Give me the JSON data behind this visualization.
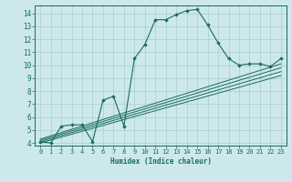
{
  "title": "",
  "xlabel": "Humidex (Indice chaleur)",
  "bg_color": "#cce8ec",
  "grid_color": "#aacccc",
  "line_color": "#1a6b5a",
  "xlim": [
    -0.5,
    23.5
  ],
  "ylim": [
    3.8,
    14.6
  ],
  "xticks": [
    0,
    1,
    2,
    3,
    4,
    5,
    6,
    7,
    8,
    9,
    10,
    11,
    12,
    13,
    14,
    15,
    16,
    17,
    18,
    19,
    20,
    21,
    22,
    23
  ],
  "yticks": [
    4,
    5,
    6,
    7,
    8,
    9,
    10,
    11,
    12,
    13,
    14
  ],
  "main_x": [
    0,
    1,
    2,
    3,
    4,
    5,
    6,
    7,
    8,
    9,
    10,
    11,
    12,
    13,
    14,
    15,
    16,
    17,
    18,
    19,
    20,
    21,
    22,
    23
  ],
  "main_y": [
    4.1,
    4.0,
    5.3,
    5.4,
    5.4,
    4.1,
    7.3,
    7.6,
    5.3,
    10.5,
    11.6,
    13.5,
    13.5,
    13.9,
    14.2,
    14.3,
    13.1,
    11.7,
    10.5,
    10.0,
    10.1,
    10.1,
    9.9,
    10.5
  ],
  "ref_lines": [
    {
      "x": [
        0,
        23
      ],
      "y": [
        4.0,
        9.2
      ]
    },
    {
      "x": [
        0,
        23
      ],
      "y": [
        4.1,
        9.5
      ]
    },
    {
      "x": [
        0,
        23
      ],
      "y": [
        4.2,
        9.8
      ]
    },
    {
      "x": [
        0,
        23
      ],
      "y": [
        4.3,
        10.1
      ]
    }
  ],
  "xlabel_fontsize": 5.5,
  "tick_fontsize": 5.0,
  "lw_main": 0.8,
  "lw_ref": 0.7,
  "marker_size": 2.0
}
